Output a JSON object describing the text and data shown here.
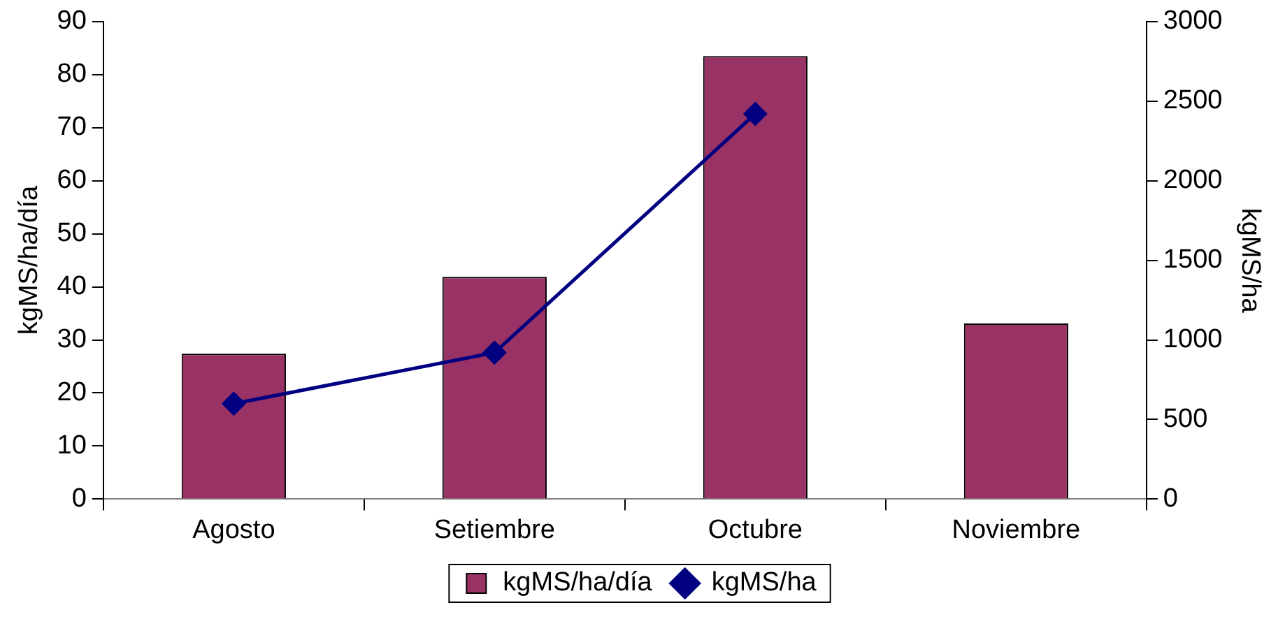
{
  "chart_data": {
    "type": "bar",
    "ylabel": "kgMS/ha/día",
    "y2label": "kgMS/ha",
    "categories": [
      "Agosto",
      "Setiembre",
      "Octubre",
      "Noviembre"
    ],
    "series": [
      {
        "name": "kgMS/ha/día",
        "color": "#993366",
        "values": [
          27.4,
          41.9,
          83.5,
          33.1
        ]
      },
      {
        "name": "kgMS/ha",
        "type": "line",
        "axis": "y2",
        "color": "#000080",
        "marker": "diamond",
        "values": [
          600,
          920,
          2420,
          null
        ]
      }
    ],
    "ylim": [
      0,
      90
    ],
    "yticks": [
      0,
      10,
      20,
      30,
      40,
      50,
      60,
      70,
      80,
      90
    ],
    "y2lim": [
      0,
      3000
    ],
    "y2ticks": [
      0,
      500,
      1000,
      1500,
      2000,
      2500,
      3000
    ],
    "grid": false,
    "legend": "bottom"
  }
}
